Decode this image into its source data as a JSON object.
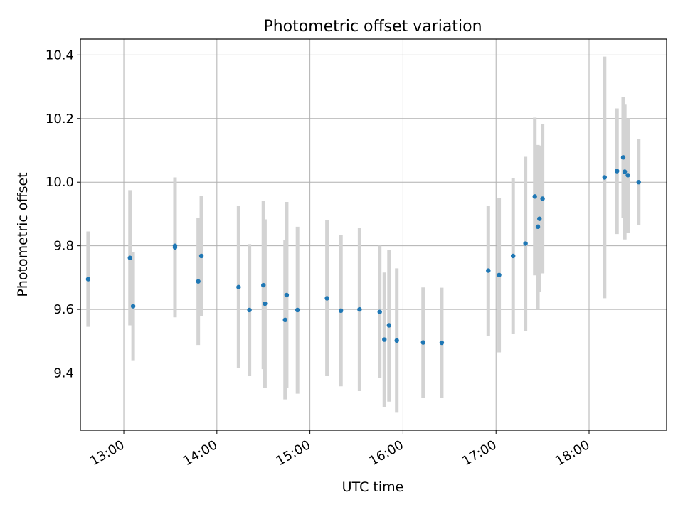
{
  "chart_data": {
    "type": "scatter",
    "title": "Photometric offset variation",
    "xlabel": "UTC time",
    "ylabel": "Photometric offset",
    "x_ticks": [
      "13:00",
      "14:00",
      "15:00",
      "16:00",
      "17:00",
      "18:00"
    ],
    "y_ticks": [
      "9.4",
      "9.6",
      "9.8",
      "10.0",
      "10.2",
      "10.4"
    ],
    "xlim": [
      "12:32",
      "18:50"
    ],
    "ylim": [
      9.22,
      10.45
    ],
    "grid": true,
    "colors": {
      "point": "#1f77b4",
      "errorbar": "#d3d3d3",
      "grid": "#b0b0b0"
    },
    "points": [
      {
        "x": "12:37",
        "y": 9.695,
        "ylow": 9.545,
        "yhigh": 9.845
      },
      {
        "x": "13:04",
        "y": 9.762,
        "ylow": 9.55,
        "yhigh": 9.975
      },
      {
        "x": "13:06",
        "y": 9.61,
        "ylow": 9.44,
        "yhigh": 9.78
      },
      {
        "x": "13:33",
        "y": 9.795,
        "ylow": 9.575,
        "yhigh": 10.015
      },
      {
        "x": "13:33",
        "y": 9.8,
        "ylow": 9.59,
        "yhigh": 10.0
      },
      {
        "x": "13:48",
        "y": 9.688,
        "ylow": 9.488,
        "yhigh": 9.888
      },
      {
        "x": "13:50",
        "y": 9.768,
        "ylow": 9.578,
        "yhigh": 9.958
      },
      {
        "x": "14:14",
        "y": 9.67,
        "ylow": 9.415,
        "yhigh": 9.925
      },
      {
        "x": "14:21",
        "y": 9.598,
        "ylow": 9.39,
        "yhigh": 9.805
      },
      {
        "x": "14:30",
        "y": 9.676,
        "ylow": 9.412,
        "yhigh": 9.94
      },
      {
        "x": "14:31",
        "y": 9.618,
        "ylow": 9.353,
        "yhigh": 9.883
      },
      {
        "x": "14:44",
        "y": 9.567,
        "ylow": 9.317,
        "yhigh": 9.817
      },
      {
        "x": "14:45",
        "y": 9.645,
        "ylow": 9.353,
        "yhigh": 9.938
      },
      {
        "x": "14:52",
        "y": 9.598,
        "ylow": 9.335,
        "yhigh": 9.86
      },
      {
        "x": "15:11",
        "y": 9.635,
        "ylow": 9.39,
        "yhigh": 9.88
      },
      {
        "x": "15:20",
        "y": 9.596,
        "ylow": 9.358,
        "yhigh": 9.834
      },
      {
        "x": "15:32",
        "y": 9.6,
        "ylow": 9.343,
        "yhigh": 9.857
      },
      {
        "x": "15:45",
        "y": 9.592,
        "ylow": 9.385,
        "yhigh": 9.8
      },
      {
        "x": "15:48",
        "y": 9.505,
        "ylow": 9.293,
        "yhigh": 9.716
      },
      {
        "x": "15:51",
        "y": 9.55,
        "ylow": 9.31,
        "yhigh": 9.787
      },
      {
        "x": "15:56",
        "y": 9.502,
        "ylow": 9.275,
        "yhigh": 9.729
      },
      {
        "x": "16:13",
        "y": 9.496,
        "ylow": 9.323,
        "yhigh": 9.669
      },
      {
        "x": "16:25",
        "y": 9.495,
        "ylow": 9.322,
        "yhigh": 9.668
      },
      {
        "x": "16:55",
        "y": 9.722,
        "ylow": 9.517,
        "yhigh": 9.926
      },
      {
        "x": "17:02",
        "y": 9.708,
        "ylow": 9.465,
        "yhigh": 9.951
      },
      {
        "x": "17:11",
        "y": 9.768,
        "ylow": 9.523,
        "yhigh": 10.013
      },
      {
        "x": "17:19",
        "y": 9.807,
        "ylow": 9.533,
        "yhigh": 10.08
      },
      {
        "x": "17:25",
        "y": 9.955,
        "ylow": 9.707,
        "yhigh": 10.203
      },
      {
        "x": "17:27",
        "y": 9.86,
        "ylow": 9.602,
        "yhigh": 10.117
      },
      {
        "x": "17:28",
        "y": 9.885,
        "ylow": 9.655,
        "yhigh": 10.115
      },
      {
        "x": "17:30",
        "y": 9.948,
        "ylow": 9.713,
        "yhigh": 10.183
      },
      {
        "x": "18:10",
        "y": 10.015,
        "ylow": 9.635,
        "yhigh": 10.395
      },
      {
        "x": "18:18",
        "y": 10.035,
        "ylow": 9.837,
        "yhigh": 10.232
      },
      {
        "x": "18:22",
        "y": 10.078,
        "ylow": 9.888,
        "yhigh": 10.268
      },
      {
        "x": "18:23",
        "y": 10.033,
        "ylow": 9.82,
        "yhigh": 10.246
      },
      {
        "x": "18:25",
        "y": 10.022,
        "ylow": 9.84,
        "yhigh": 10.2
      },
      {
        "x": "18:32",
        "y": 10.0,
        "ylow": 9.865,
        "yhigh": 10.137
      }
    ]
  }
}
